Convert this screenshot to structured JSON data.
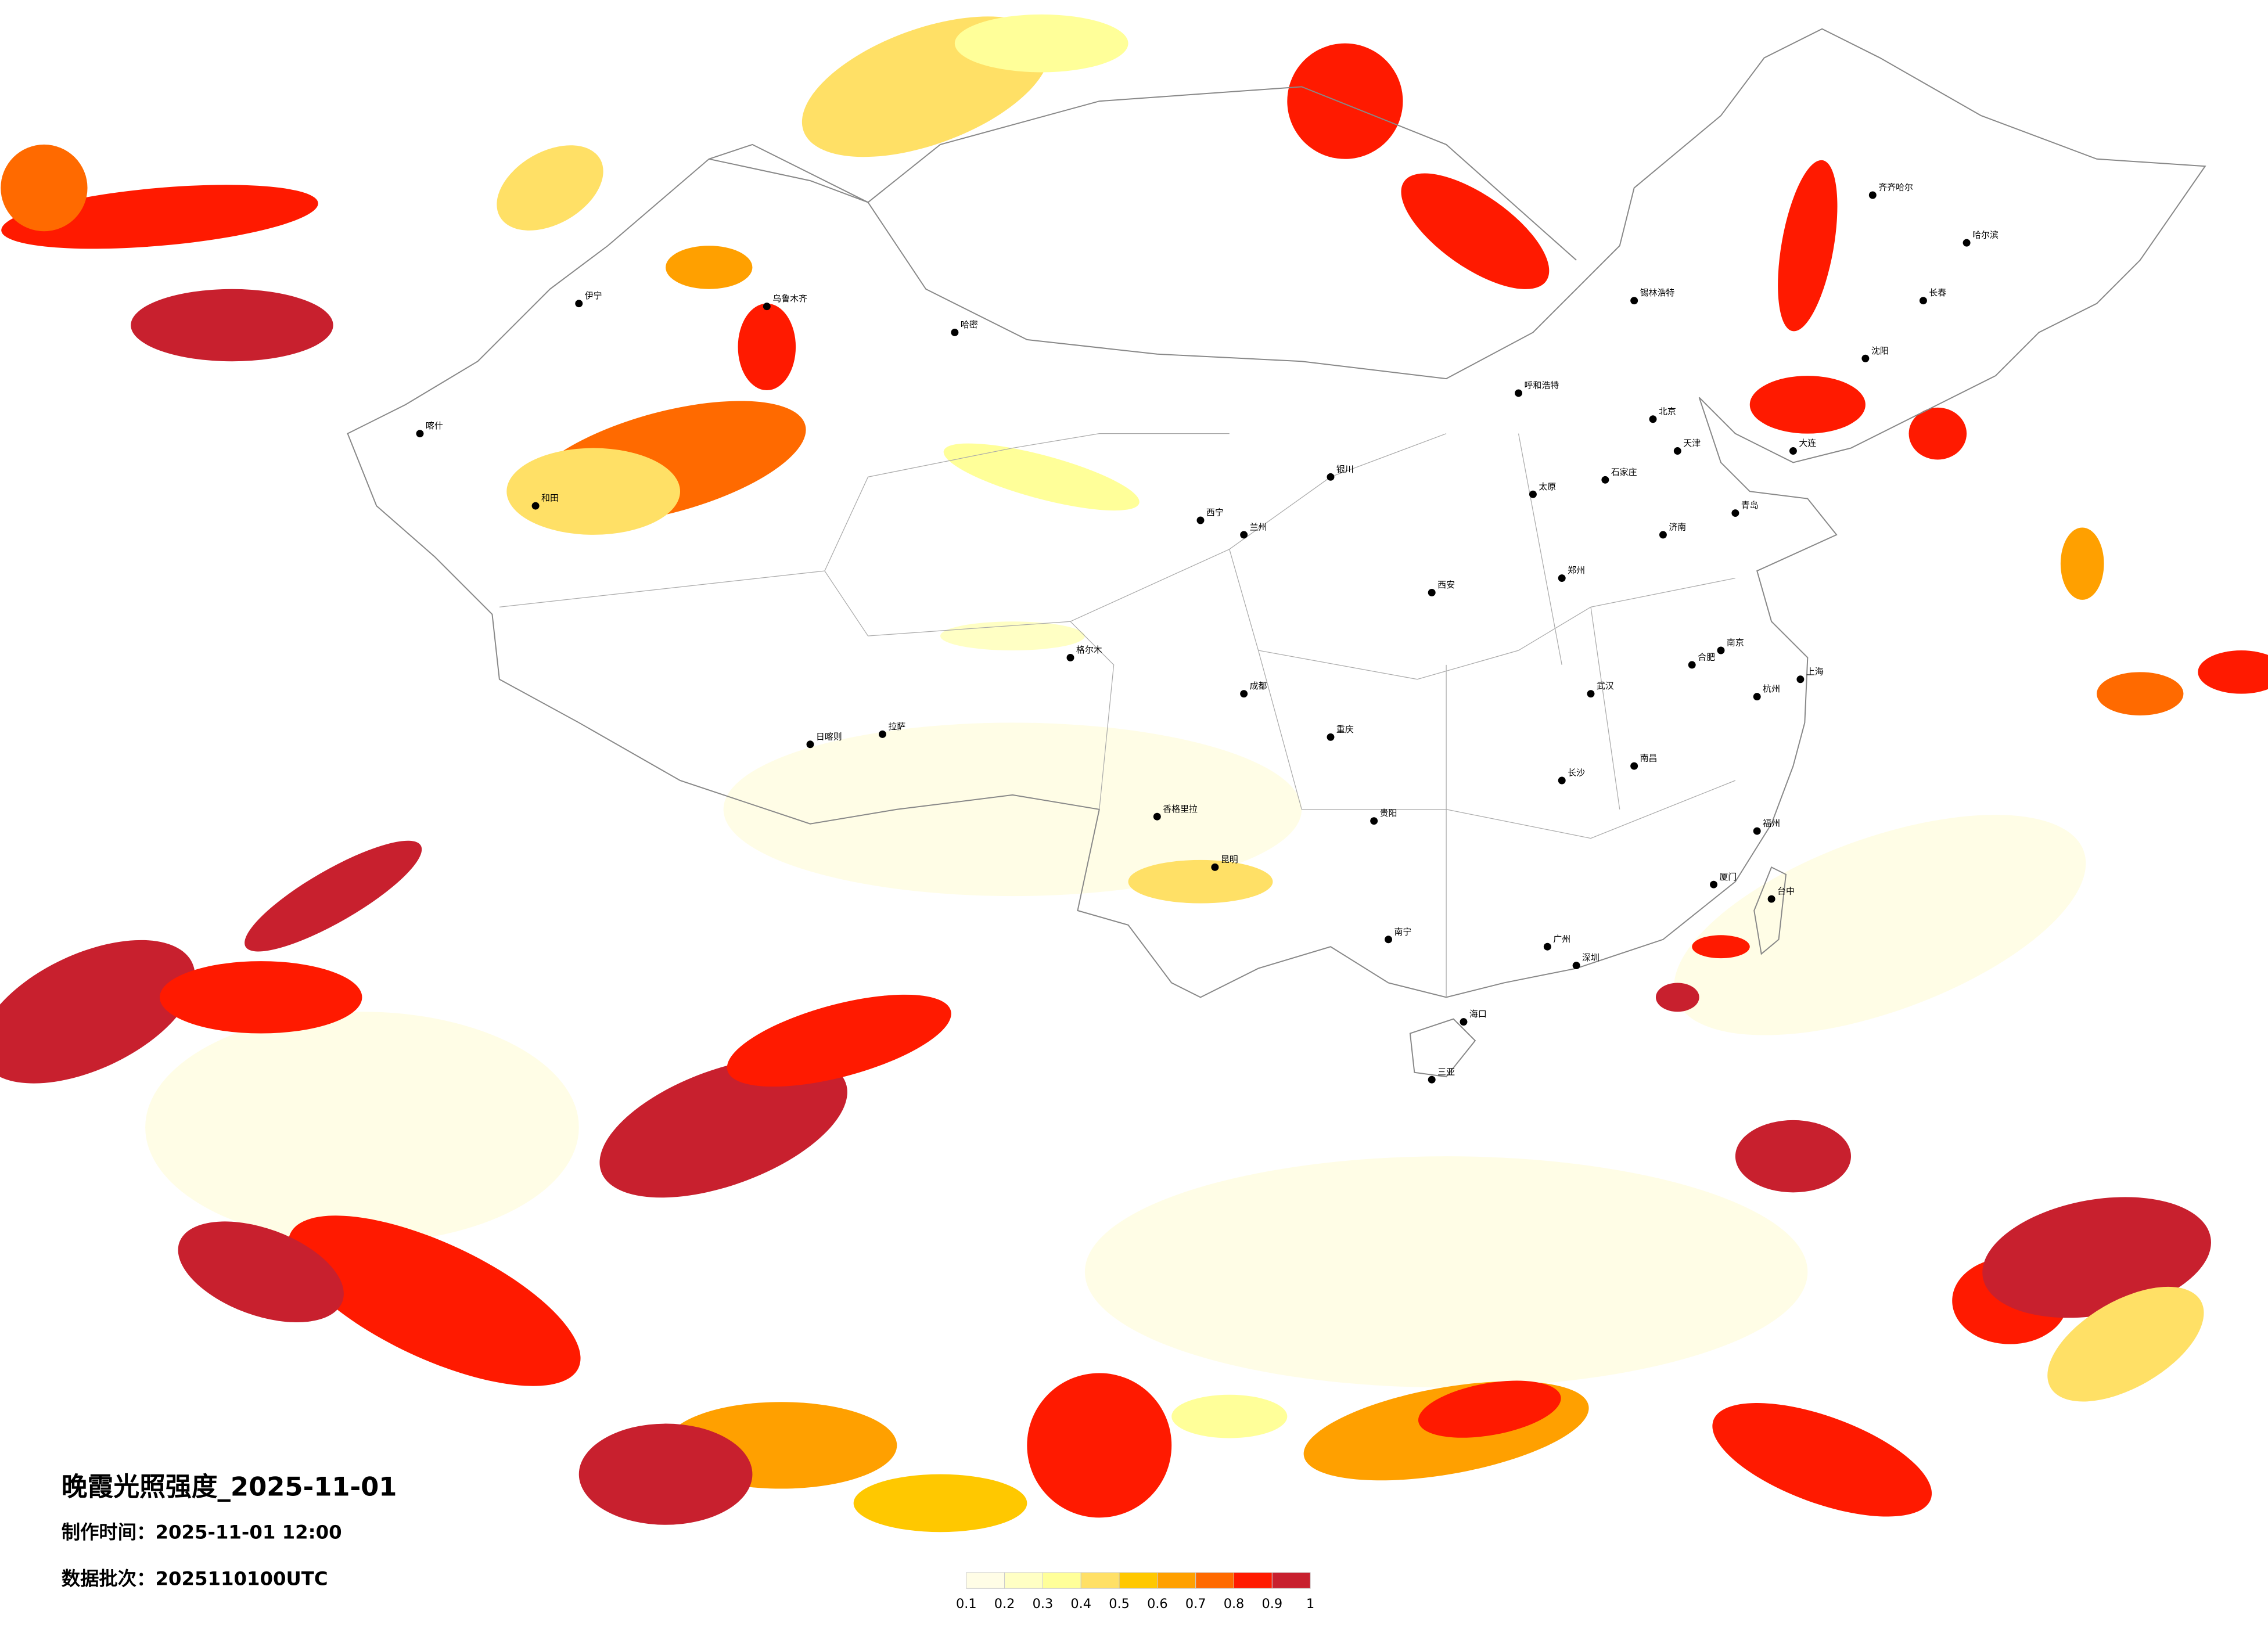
{
  "title": "晚霞光照强度_2025-11-01",
  "made_time_label": "制作时间：",
  "made_time": "2025-11-01 12:00",
  "batch_label": "数据批次：",
  "batch": "2025110100UTC",
  "colorbar": {
    "ticks": [
      0.1,
      0.2,
      0.3,
      0.4,
      0.5,
      0.6,
      0.7,
      0.8,
      0.9,
      1
    ],
    "colors": [
      "#fffde6",
      "#ffffc4",
      "#ffff99",
      "#ffe066",
      "#ffc800",
      "#ffa000",
      "#ff6a00",
      "#ff1a00",
      "#c8202e"
    ]
  },
  "cities": [
    "北京",
    "天津",
    "上海",
    "广州",
    "深圳",
    "重庆",
    "成都",
    "武汉",
    "西安",
    "兰州",
    "乌鲁木齐",
    "拉萨",
    "哈尔滨",
    "长春",
    "沈阳",
    "昆明",
    "贵阳",
    "南宁",
    "海口",
    "福州",
    "台中",
    "杭州",
    "南京",
    "郑州",
    "济南",
    "石家庄",
    "太原",
    "呼和浩特",
    "银川",
    "西宁",
    "长沙",
    "南昌",
    "合肥",
    "喀什",
    "伊宁",
    "和田",
    "格尔木",
    "日喀则",
    "齐齐哈尔",
    "大连",
    "青岛",
    "厦门",
    "三亚",
    "香格里拉",
    "锡林浩特",
    "哈密"
  ]
}
